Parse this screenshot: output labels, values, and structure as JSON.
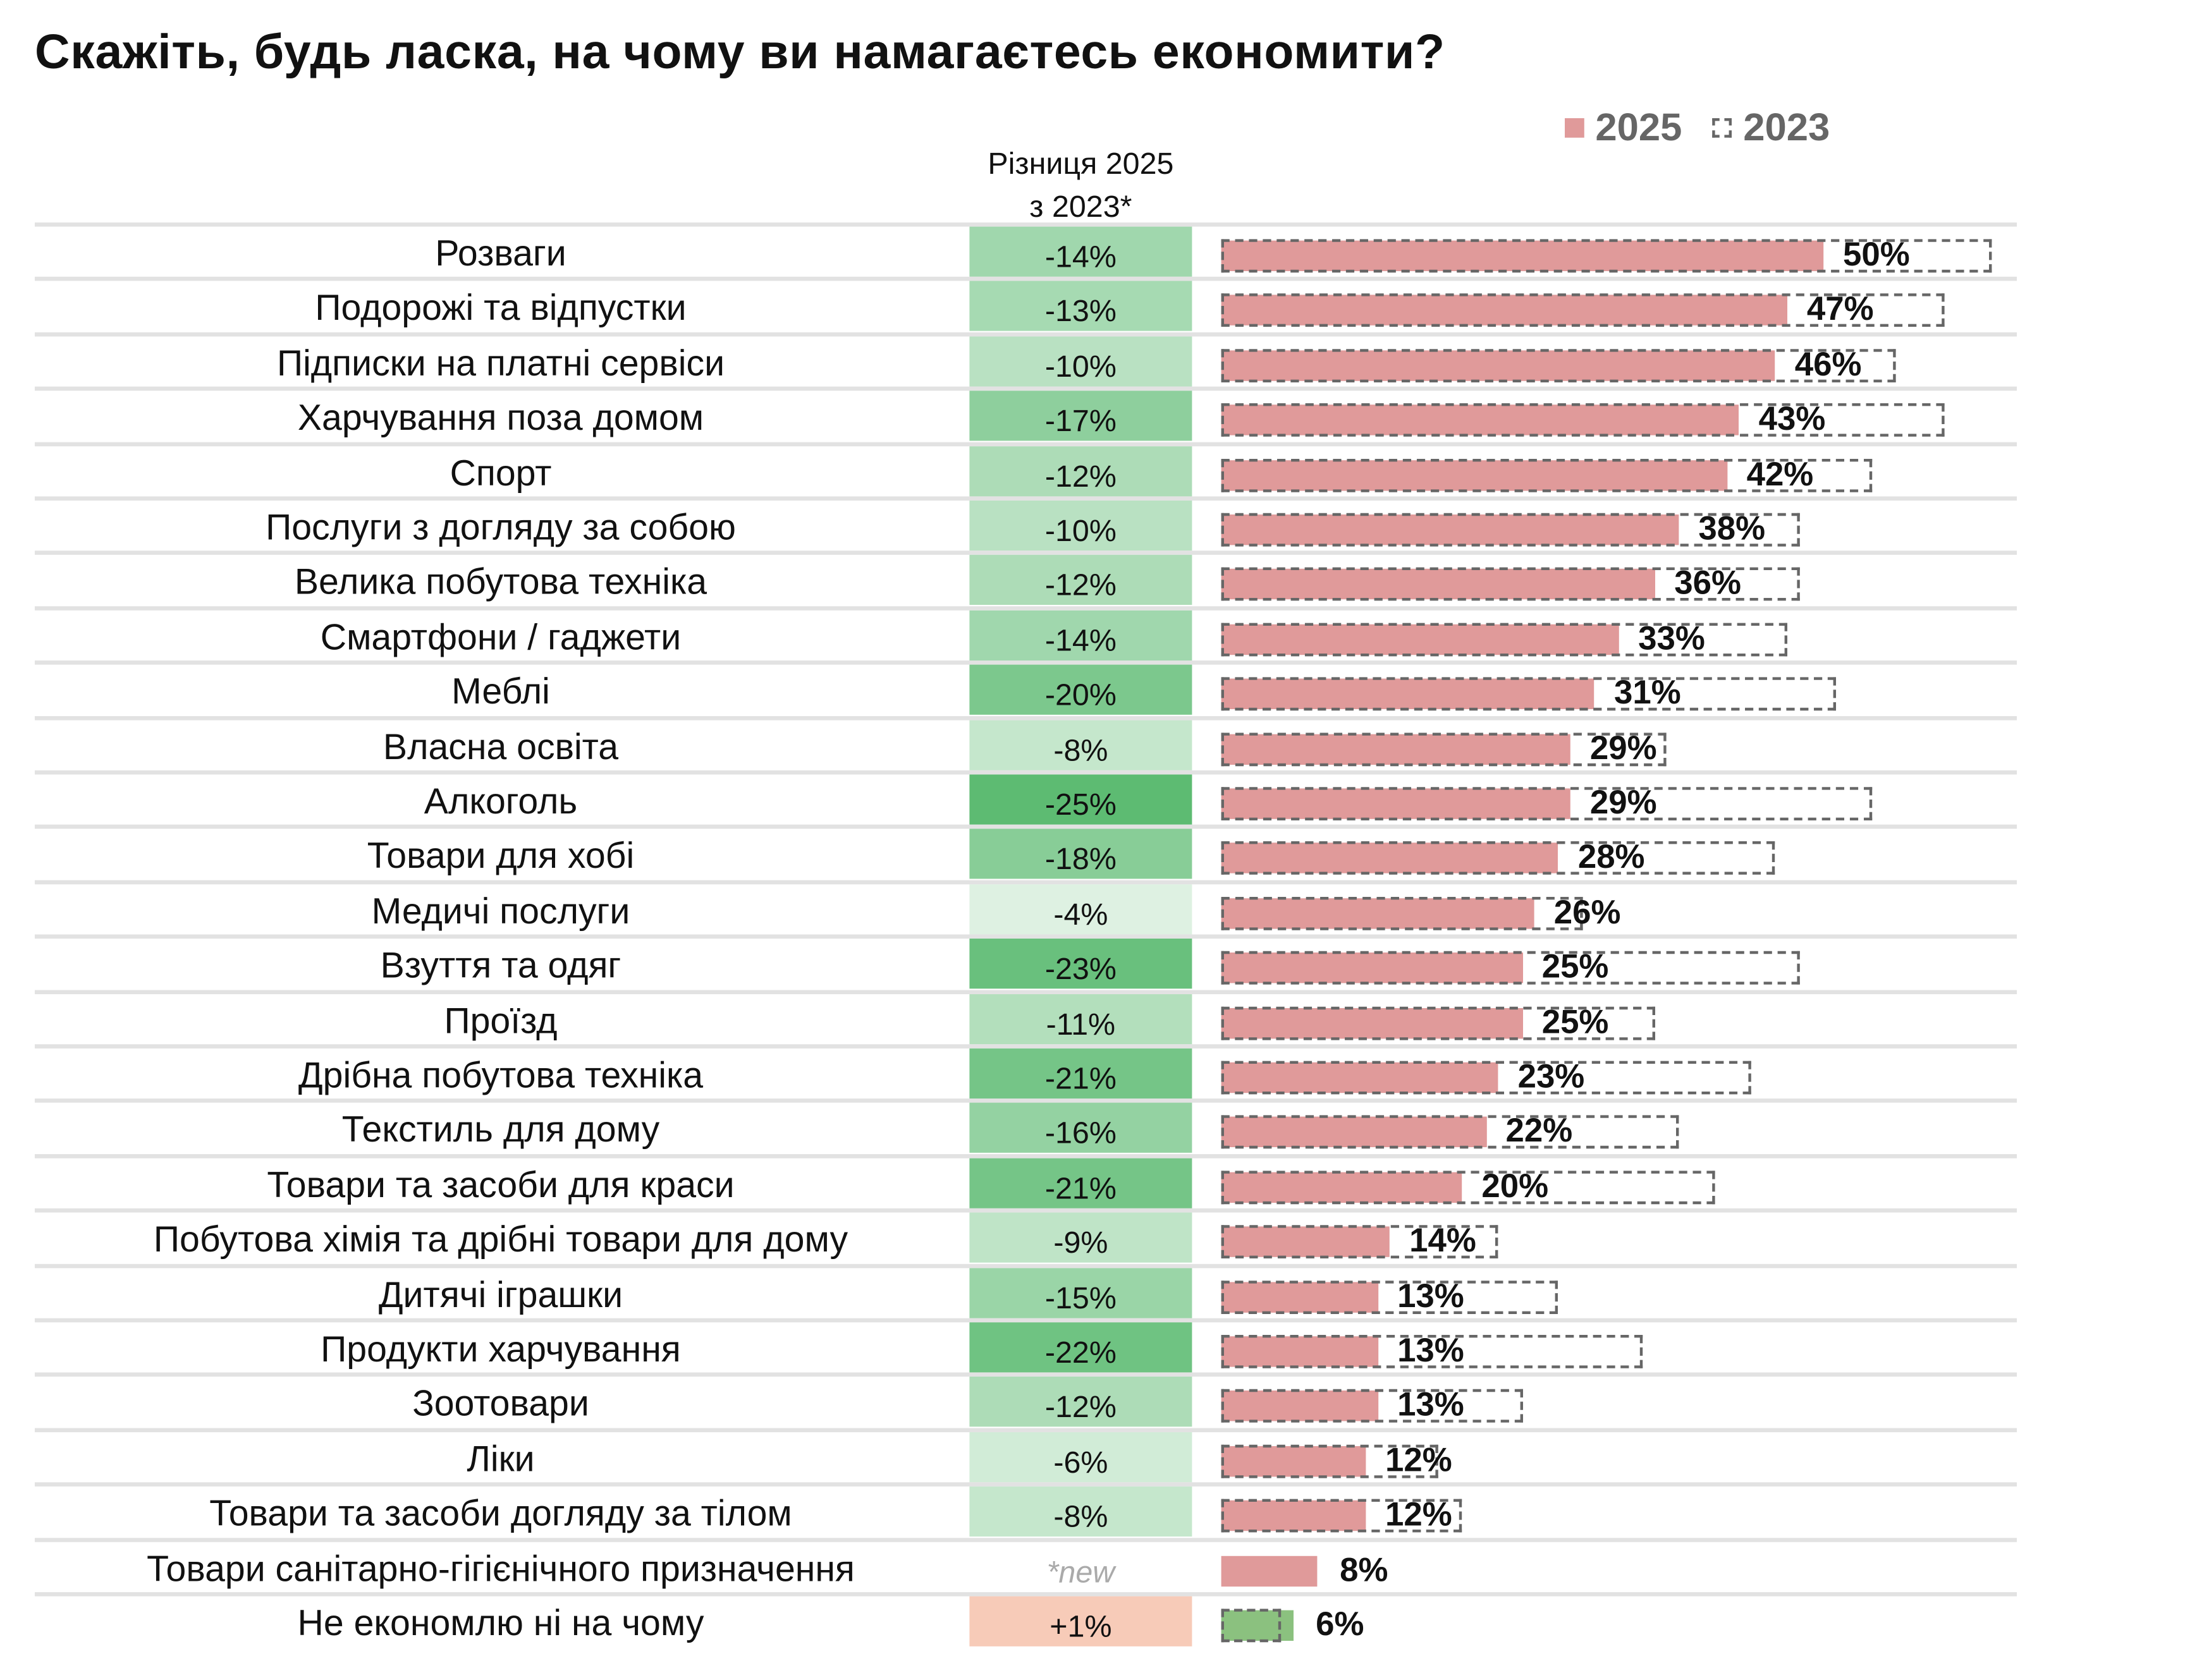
{
  "chart_data": {
    "type": "bar",
    "title": "Скажіть, будь ласка, на чому ви намагаєтесь економити?",
    "diff_header": [
      "Різниця 2025",
      "з 2023*"
    ],
    "legend": [
      {
        "name": "2025",
        "color": "#e09a9a",
        "style": "solid"
      },
      {
        "name": "2023",
        "color": "#666666",
        "style": "dashed"
      }
    ],
    "orientation": "horizontal",
    "xlim": [
      0,
      100
    ],
    "categories": [
      "Розваги",
      "Подорожі та відпустки",
      "Підписки на платні сервіси",
      "Харчування поза домом",
      "Спорт",
      "Послуги з догляду за собою",
      "Велика побутова техніка",
      "Смартфони / гаджети",
      "Меблі",
      "Власна освіта",
      "Алкоголь",
      "Товари для хобі",
      "Медичі послуги",
      "Взуття та одяг",
      "Проїзд",
      "Дрібна побутова техніка",
      "Текстиль для дому",
      "Товари та засоби для краси",
      "Побутова хімія та дрібні товари для дому",
      "Дитячі іграшки",
      "Продукти харчування",
      "Зоотовари",
      "Ліки",
      "Товари та засоби догляду за тілом",
      "Товари санітарно-гігієнічного призначення",
      "Не економлю ні на чому"
    ],
    "series": [
      {
        "name": "2025",
        "values": [
          50,
          47,
          46,
          43,
          42,
          38,
          36,
          33,
          31,
          29,
          29,
          28,
          26,
          25,
          25,
          23,
          22,
          20,
          14,
          13,
          13,
          13,
          12,
          12,
          8,
          6
        ]
      },
      {
        "name": "2023",
        "values": [
          64,
          60,
          56,
          60,
          54,
          48,
          48,
          47,
          51,
          37,
          54,
          46,
          30,
          48,
          36,
          44,
          38,
          41,
          23,
          28,
          35,
          25,
          18,
          20,
          null,
          5
        ]
      }
    ],
    "diff": [
      "-14%",
      "-13%",
      "-10%",
      "-17%",
      "-12%",
      "-10%",
      "-12%",
      "-14%",
      "-20%",
      "-8%",
      "-25%",
      "-18%",
      "-4%",
      "-23%",
      "-11%",
      "-21%",
      "-16%",
      "-21%",
      "-9%",
      "-15%",
      "-22%",
      "-12%",
      "-6%",
      "-8%",
      "*new",
      "+1%"
    ],
    "labels": [
      "50%",
      "47%",
      "46%",
      "43%",
      "42%",
      "38%",
      "36%",
      "33%",
      "31%",
      "29%",
      "29%",
      "28%",
      "26%",
      "25%",
      "25%",
      "23%",
      "22%",
      "20%",
      "14%",
      "13%",
      "13%",
      "13%",
      "12%",
      "12%",
      "8%",
      "6%"
    ],
    "highlight_color": "#8bc17f",
    "positive_diff_color": "#f7cbb8"
  }
}
